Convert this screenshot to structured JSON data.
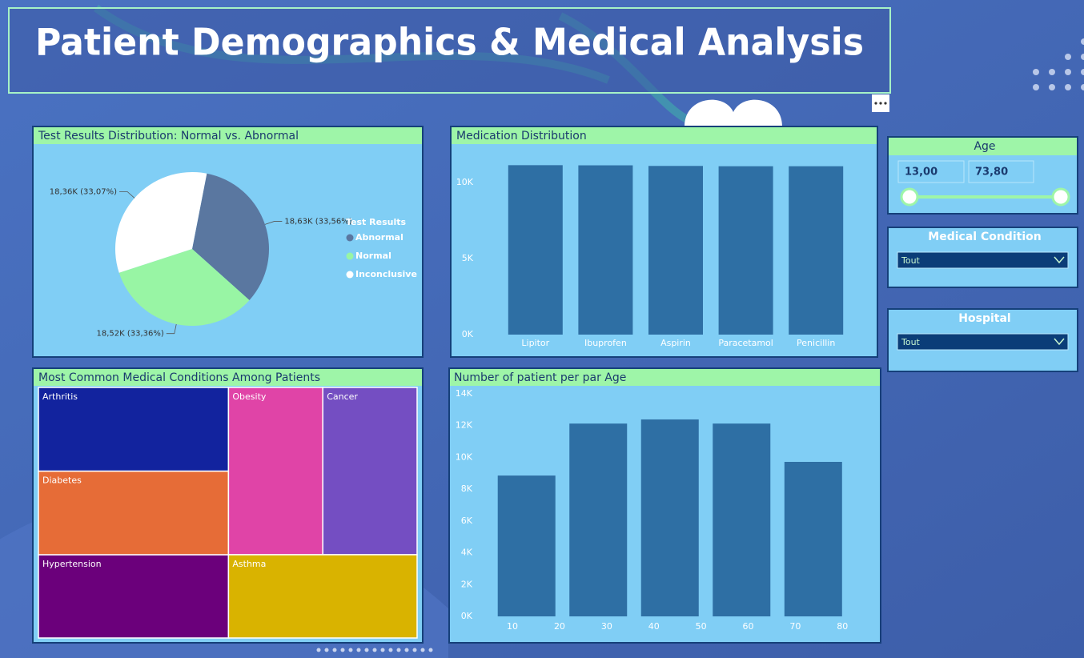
{
  "header": {
    "title": "Patient Demographics & Medical Analysis"
  },
  "slicers": {
    "age": {
      "title": "Age",
      "min": "13,00",
      "max": "73,80"
    },
    "medical_condition": {
      "title": "Medical Condition",
      "selection": "Tout"
    },
    "hospital": {
      "title": "Hospital",
      "selection": "Tout"
    }
  },
  "chart_data": [
    {
      "type": "pie",
      "title": "Test Results Distribution: Normal vs. Abnormal",
      "legend_title": "Test Results",
      "categories": [
        "Abnormal",
        "Normal",
        "Inconclusive"
      ],
      "values": [
        18630,
        18520,
        18360
      ],
      "value_labels": [
        "18,63K (33,56%)",
        "18,52K (33,36%)",
        "18,36K (33,07%)"
      ],
      "colors": [
        "#5a77a0",
        "#98f5a4",
        "#ffffff"
      ],
      "legend": "right"
    },
    {
      "type": "bar",
      "title": "Medication Distribution",
      "categories": [
        "Lipitor",
        "Ibuprofen",
        "Aspirin",
        "Paracetamol",
        "Penicillin"
      ],
      "values": [
        11140,
        11130,
        11090,
        11070,
        11070
      ],
      "color": "#2e6fa4",
      "ylim": [
        0,
        12000
      ],
      "yticks": [
        {
          "value": 0,
          "label": "0K"
        },
        {
          "value": 5000,
          "label": "5K"
        },
        {
          "value": 10000,
          "label": "10K"
        }
      ],
      "grid": false
    },
    {
      "type": "treemap",
      "title": "Most Common Medical Conditions Among Patients",
      "categories": [
        "Arthritis",
        "Diabetes",
        "Hypertension",
        "Obesity",
        "Cancer",
        "Asthma"
      ],
      "values": [
        9310,
        9300,
        9250,
        9230,
        9230,
        9190
      ],
      "colors": [
        "#12239e",
        "#e66c37",
        "#6b007b",
        "#e044a7",
        "#744ec2",
        "#d9b300"
      ]
    },
    {
      "type": "bar",
      "title": "Number of patient per par Age",
      "x": [
        13,
        28.2,
        43.4,
        58.6,
        73.8
      ],
      "values": [
        8860,
        12130,
        12390,
        12130,
        9720
      ],
      "color": "#2e6fa4",
      "xlim": [
        3.2,
        86.4
      ],
      "xticks": [
        10,
        20,
        30,
        40,
        50,
        60,
        70,
        80
      ],
      "ylim": [
        0,
        14000
      ],
      "yticks": [
        {
          "value": 0,
          "label": "0K"
        },
        {
          "value": 2000,
          "label": "2K"
        },
        {
          "value": 4000,
          "label": "4K"
        },
        {
          "value": 6000,
          "label": "6K"
        },
        {
          "value": 8000,
          "label": "8K"
        },
        {
          "value": 10000,
          "label": "10K"
        },
        {
          "value": 12000,
          "label": "12K"
        },
        {
          "value": 14000,
          "label": "14K"
        }
      ],
      "grid": false
    }
  ]
}
